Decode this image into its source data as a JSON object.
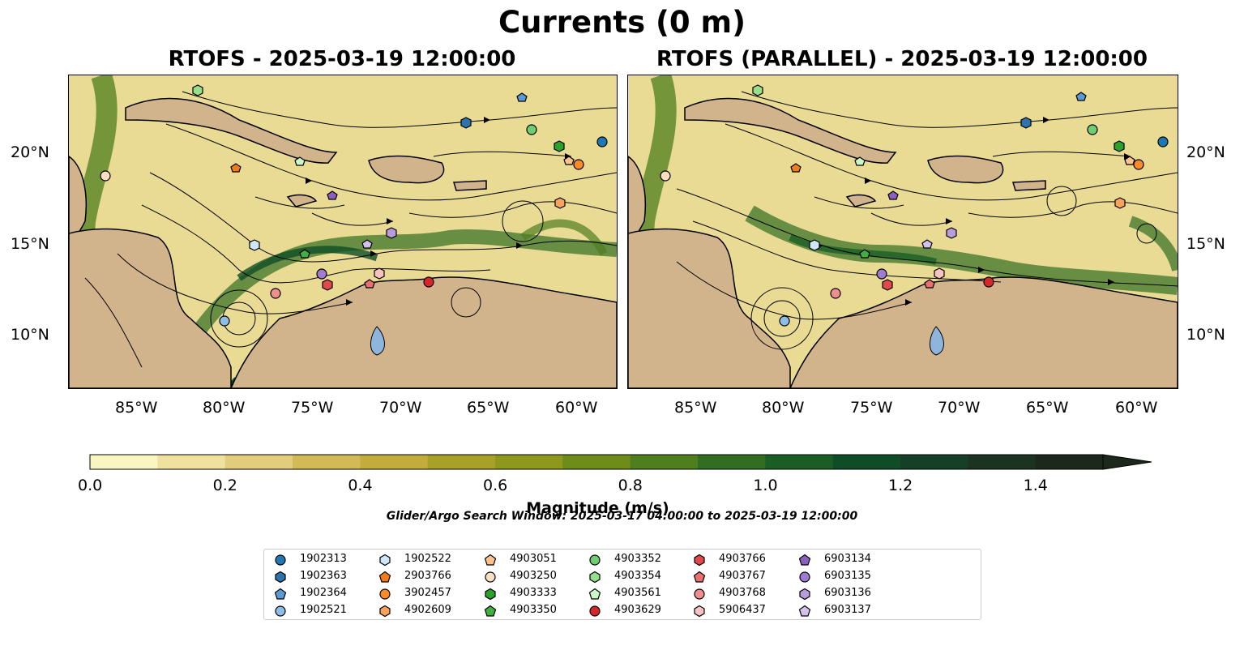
{
  "suptitle": "Currents (0 m)",
  "panels": [
    {
      "title": "RTOFS - 2025-03-19 12:00:00"
    },
    {
      "title": "RTOFS (PARALLEL) - 2025-03-19 12:00:00"
    }
  ],
  "axes": {
    "lon_ticks": [
      "85°W",
      "80°W",
      "75°W",
      "70°W",
      "65°W",
      "60°W"
    ],
    "lat_ticks": [
      "20°N",
      "15°N",
      "10°N"
    ]
  },
  "colorbar": {
    "title": "Magnitude (m/s)",
    "ticks": [
      "0.0",
      "0.2",
      "0.4",
      "0.6",
      "0.8",
      "1.0",
      "1.2",
      "1.4"
    ],
    "colors": [
      "#faf6c2",
      "#efe2a1",
      "#e1cd7c",
      "#d2bb56",
      "#c2ad3c",
      "#a9a028",
      "#8d981c",
      "#6e8c1a",
      "#4e7e1e",
      "#316e22",
      "#1a5e26",
      "#0f4d26",
      "#153f26",
      "#1b3321",
      "#1c281b"
    ]
  },
  "search_window": "Glider/Argo Search Window: 2025-03-17 04:00:00 to 2025-03-19 12:00:00",
  "legend": [
    {
      "id": "1902313",
      "color": "#1f77b4",
      "shape": "circle"
    },
    {
      "id": "1902363",
      "color": "#2f73ad",
      "shape": "hexagon"
    },
    {
      "id": "1902364",
      "color": "#5b9bd5",
      "shape": "pentagon"
    },
    {
      "id": "1902521",
      "color": "#8fbde8",
      "shape": "circle"
    },
    {
      "id": "1902522",
      "color": "#cfe7f8",
      "shape": "hexagon"
    },
    {
      "id": "2903766",
      "color": "#f07d1a",
      "shape": "pentagon"
    },
    {
      "id": "3902457",
      "color": "#fb8a2a",
      "shape": "circle"
    },
    {
      "id": "4902609",
      "color": "#fba35c",
      "shape": "hexagon"
    },
    {
      "id": "4903051",
      "color": "#fcc38e",
      "shape": "pentagon"
    },
    {
      "id": "4903250",
      "color": "#fde0c4",
      "shape": "circle"
    },
    {
      "id": "4903333",
      "color": "#2ca02c",
      "shape": "hexagon"
    },
    {
      "id": "4903350",
      "color": "#3fb041",
      "shape": "pentagon"
    },
    {
      "id": "4903352",
      "color": "#6fcf6f",
      "shape": "circle"
    },
    {
      "id": "4903354",
      "color": "#98df8a",
      "shape": "hexagon"
    },
    {
      "id": "4903561",
      "color": "#ccf7c8",
      "shape": "pentagon"
    },
    {
      "id": "4903629",
      "color": "#d62728",
      "shape": "circle"
    },
    {
      "id": "4903766",
      "color": "#e04a4b",
      "shape": "hexagon"
    },
    {
      "id": "4903767",
      "color": "#ea6f70",
      "shape": "pentagon"
    },
    {
      "id": "4903768",
      "color": "#f08f8f",
      "shape": "circle"
    },
    {
      "id": "5906437",
      "color": "#f8c2c2",
      "shape": "hexagon"
    },
    {
      "id": "6903134",
      "color": "#8c5fbf",
      "shape": "pentagon"
    },
    {
      "id": "6903135",
      "color": "#a07cd0",
      "shape": "circle"
    },
    {
      "id": "6903136",
      "color": "#b89ddc",
      "shape": "hexagon"
    },
    {
      "id": "6903137",
      "color": "#d3c0ec",
      "shape": "pentagon"
    }
  ]
}
